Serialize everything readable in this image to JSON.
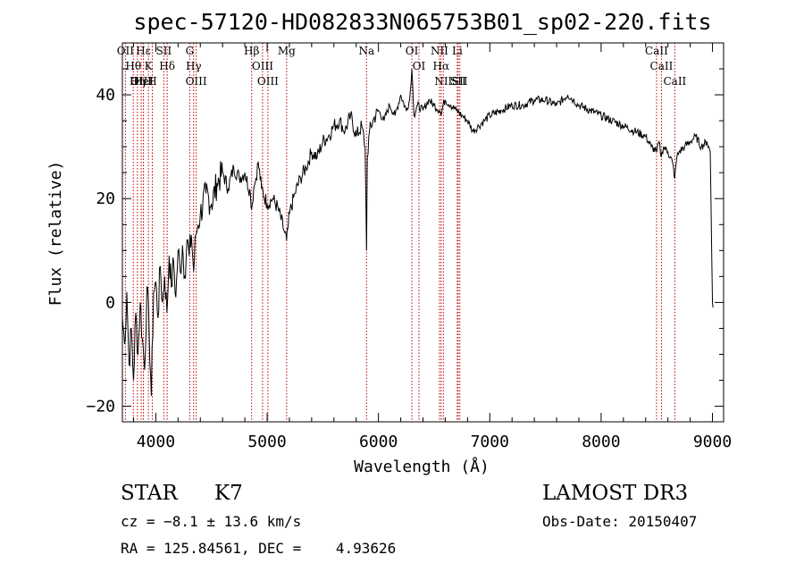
{
  "chart_data": {
    "type": "line",
    "title": "spec-57120-HD082833N065753B01_sp02-220.fits",
    "xlabel": "Wavelength (Å)",
    "ylabel": "Flux (relative)",
    "xlim": [
      3700,
      9100
    ],
    "ylim": [
      -23,
      50
    ],
    "x_ticks": [
      4000,
      5000,
      6000,
      7000,
      8000,
      9000
    ],
    "y_ticks": [
      -20,
      0,
      20,
      40
    ],
    "grid": false,
    "series": [
      {
        "x": [
          3700,
          3720,
          3740,
          3760,
          3780,
          3800,
          3820,
          3840,
          3860,
          3880,
          3900,
          3920,
          3940,
          3960,
          3980,
          4000,
          4020,
          4040,
          4060,
          4080,
          4100,
          4120,
          4140,
          4160,
          4180,
          4200,
          4220,
          4240,
          4260,
          4280,
          4300,
          4320,
          4340,
          4360,
          4380,
          4400,
          4450,
          4500,
          4550,
          4600,
          4650,
          4700,
          4750,
          4800,
          4850,
          4861,
          4880,
          4900,
          4920,
          4950,
          5000,
          5050,
          5100,
          5150,
          5175,
          5190,
          5200,
          5250,
          5300,
          5350,
          5400,
          5450,
          5500,
          5550,
          5600,
          5650,
          5700,
          5750,
          5800,
          5850,
          5880,
          5893,
          5900,
          5920,
          5950,
          6000,
          6050,
          6100,
          6150,
          6200,
          6250,
          6280,
          6300,
          6320,
          6350,
          6400,
          6450,
          6500,
          6550,
          6563,
          6580,
          6600,
          6650,
          6700,
          6750,
          6800,
          6850,
          6900,
          6950,
          7000,
          7100,
          7200,
          7300,
          7400,
          7500,
          7600,
          7700,
          7750,
          7800,
          7900,
          8000,
          8100,
          8200,
          8300,
          8400,
          8450,
          8500,
          8520,
          8540,
          8560,
          8600,
          8640,
          8662,
          8680,
          8700,
          8750,
          8800,
          8850,
          8900,
          8950,
          8980,
          9000,
          9005
        ],
        "y": [
          -3,
          -8,
          2,
          -12,
          -5,
          -15,
          -2,
          -10,
          0,
          -7,
          -13,
          3,
          -5,
          -18,
          2,
          4,
          -3,
          7,
          0,
          5,
          -2,
          9,
          3,
          8,
          1,
          10,
          6,
          11,
          5,
          12,
          9,
          13,
          6,
          13,
          15,
          17,
          21,
          19,
          23,
          25,
          22,
          26,
          24,
          25,
          21,
          18,
          22,
          24,
          27,
          22,
          19,
          20,
          18,
          14,
          12,
          15,
          17,
          21,
          24,
          26,
          29,
          28,
          31,
          32,
          34,
          35,
          33,
          36,
          32,
          34,
          30,
          10,
          28,
          33,
          35,
          37,
          35,
          38,
          36,
          40,
          37,
          39,
          45,
          36,
          38,
          37,
          39,
          38,
          37,
          36,
          38,
          39,
          38,
          37,
          36,
          35,
          33,
          34,
          35,
          36,
          37,
          38,
          38,
          39,
          39,
          38,
          40,
          39,
          38,
          37,
          36,
          35,
          34,
          33,
          32,
          30,
          29,
          31,
          28,
          30,
          29,
          27,
          24,
          28,
          29,
          30,
          31,
          32,
          30,
          31,
          29,
          0,
          -1
        ]
      }
    ],
    "lines": [
      {
        "name": "Hθ",
        "x": 3798
      },
      {
        "name": "OII",
        "x": 3727
      },
      {
        "name": "OIII",
        "x": 3869
      },
      {
        "name": "Hε",
        "x": 3889
      },
      {
        "name": "K",
        "x": 3934
      },
      {
        "name": "H",
        "x": 3969
      },
      {
        "name": "HeI",
        "x": 3889
      },
      {
        "name": "SII",
        "x": 4072
      },
      {
        "name": "Hη",
        "x": 3835
      },
      {
        "name": "Hδ",
        "x": 4102
      },
      {
        "name": "OIII",
        "x": 4363
      },
      {
        "name": "Hγ",
        "x": 4340
      },
      {
        "name": "G",
        "x": 4305
      },
      {
        "name": "Hβ",
        "x": 4861
      },
      {
        "name": "OIII",
        "x": 4959
      },
      {
        "name": "OIII",
        "x": 5007
      },
      {
        "name": "Mg",
        "x": 5175
      },
      {
        "name": "Na",
        "x": 5893
      },
      {
        "name": "OI",
        "x": 6300
      },
      {
        "name": "OI",
        "x": 6364
      },
      {
        "name": "Hα",
        "x": 6563
      },
      {
        "name": "NII",
        "x": 6548
      },
      {
        "name": "NII",
        "x": 6583
      },
      {
        "name": "SII",
        "x": 6716
      },
      {
        "name": "SII",
        "x": 6731
      },
      {
        "name": "Li",
        "x": 6708
      },
      {
        "name": "CaII",
        "x": 8498
      },
      {
        "name": "CaII",
        "x": 8542
      },
      {
        "name": "CaII",
        "x": 8662
      }
    ]
  },
  "info": {
    "object_type": "STAR",
    "subclass": "K7",
    "survey": "LAMOST DR3",
    "redshift": "cz = −8.1 ± 13.6 km/s",
    "obs_date": "Obs-Date: 20150407",
    "coords": "RA = 125.84561, DEC =    4.93626"
  }
}
